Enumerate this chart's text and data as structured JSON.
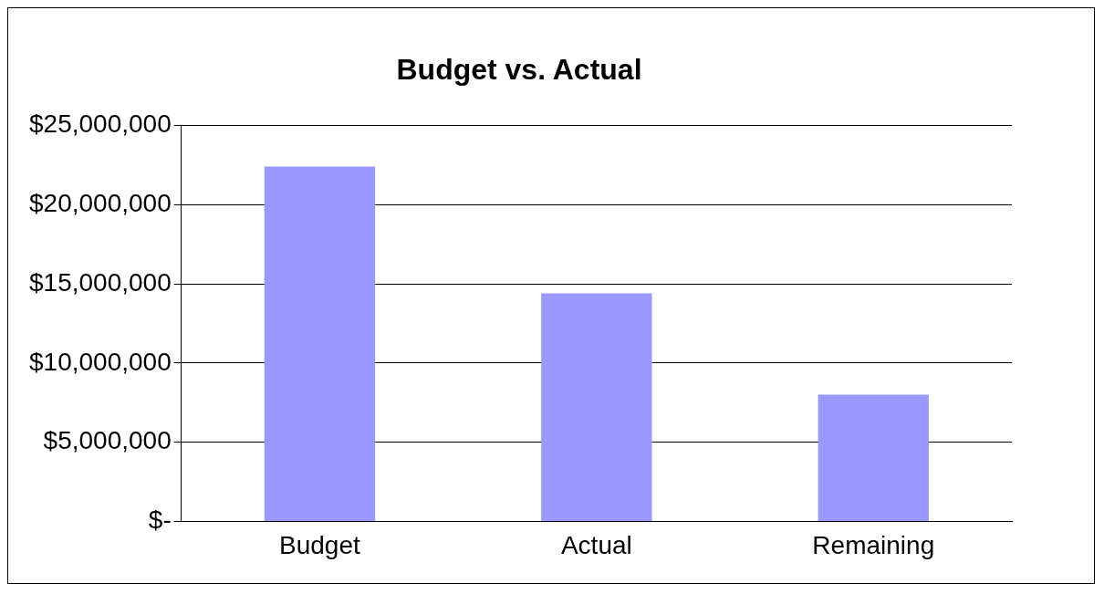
{
  "chart_data": {
    "type": "bar",
    "title": "Budget vs. Actual",
    "categories": [
      "Budget",
      "Actual",
      "Remaining"
    ],
    "values": [
      22400000,
      14400000,
      8000000
    ],
    "color": "#9999ff",
    "ylim": [
      0,
      25000000
    ],
    "yticks": [
      {
        "value": 0,
        "label": "$-"
      },
      {
        "value": 5000000,
        "label": "$5,000,000"
      },
      {
        "value": 10000000,
        "label": "$10,000,000"
      },
      {
        "value": 15000000,
        "label": "$15,000,000"
      },
      {
        "value": 20000000,
        "label": "$20,000,000"
      },
      {
        "value": 25000000,
        "label": "$25,000,000"
      }
    ],
    "grid": "y",
    "legend": false
  }
}
